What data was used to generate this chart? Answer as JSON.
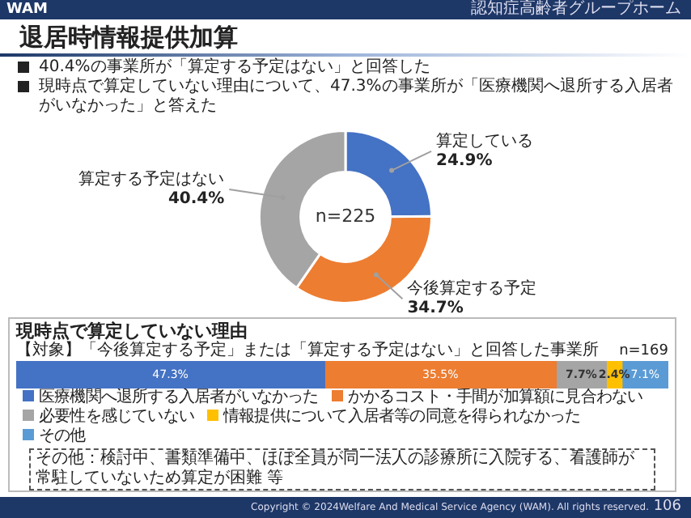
{
  "chart_data": [
    {
      "type": "donut",
      "title": "退居時情報提供加算",
      "categories": [
        "算定している",
        "今後算定する予定",
        "算定する予定はない"
      ],
      "values": [
        24.9,
        34.7,
        40.4
      ],
      "colors": [
        "#4472c4",
        "#ed7d31",
        "#a5a5a5"
      ],
      "value_labels": [
        "24.9%",
        "34.7%",
        "40.4%"
      ],
      "legend": false,
      "annotations": [
        "WAM",
        "認知症高齢者グループホーム",
        "40.4%の事業所が「算定する予定はない」と回答した",
        "現時点で算定していない理由について、47.3%の事業所が「医療機関へ退所する入居者がいなかった」と答えた",
        "n=225",
        "Copyright © 2024Welfare And Medical Service Agency (WAM). All rights reserved.",
        "106"
      ]
    },
    {
      "type": "bar",
      "orientation": "horizontal",
      "stacked": true,
      "title": "現時点で算定していない理由",
      "subtitle": "【対象】「今後算定する予定」または「算定する予定はない」と回答した事業所",
      "categories": [
        null
      ],
      "xlim": [
        0,
        100
      ],
      "tick_labels": false,
      "legend": "bottom",
      "series": [
        {
          "name": "医療機関へ退所する入居者がいなかった",
          "color": "#4472c4",
          "values": [
            47.3
          ],
          "value_labels": [
            "47.3%"
          ]
        },
        {
          "name": "かかるコスト・手間が加算額に見合わない",
          "color": "#ed7d31",
          "values": [
            35.5
          ],
          "value_labels": [
            "35.5%"
          ]
        },
        {
          "name": "必要性を感じていない",
          "color": "#a5a5a5",
          "values": [
            7.7
          ],
          "value_labels": [
            "7.7%"
          ]
        },
        {
          "name": "情報提供について入居者等の同意を得られなかった",
          "color": "#ffc000",
          "values": [
            2.4
          ],
          "value_labels": [
            "2.4%"
          ]
        },
        {
          "name": "その他",
          "color": "#5b9bd5",
          "values": [
            7.1
          ],
          "value_labels": [
            "7.1%"
          ]
        }
      ],
      "annotations": [
        "n=169",
        "その他：検討中、書類準備中、ほぼ全員が同一法人の診療所に入院する、看護師が常駐していないため算定が困難 等"
      ]
    }
  ]
}
